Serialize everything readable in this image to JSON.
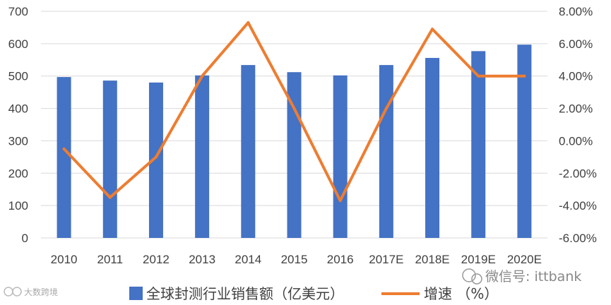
{
  "chart_data": {
    "type": "bar",
    "categories": [
      "2010",
      "2011",
      "2012",
      "2013",
      "2014",
      "2015",
      "2016",
      "2017E",
      "2018E",
      "2019E",
      "2020E"
    ],
    "series": [
      {
        "name": "全球封测行业销售额（亿美元）",
        "type": "bar",
        "axis": "left",
        "color": "#4472C4",
        "values": [
          497,
          486,
          480,
          502,
          534,
          512,
          502,
          534,
          556,
          577,
          597
        ]
      },
      {
        "name": "增速 （%）",
        "type": "line",
        "axis": "right",
        "color": "#ED7D31",
        "values": [
          -0.5,
          -3.5,
          -1.0,
          4.0,
          7.3,
          2.0,
          -3.7,
          2.0,
          6.9,
          4.0,
          4.0
        ]
      }
    ],
    "y_left": {
      "min": 0,
      "max": 700,
      "ticks": [
        "0",
        "100",
        "200",
        "300",
        "400",
        "500",
        "600",
        "700"
      ]
    },
    "y_right": {
      "min": -6,
      "max": 8,
      "ticks": [
        "-6.00%",
        "-4.00%",
        "-2.00%",
        "0.00%",
        "2.00%",
        "4.00%",
        "6.00%",
        "8.00%"
      ]
    },
    "grid": true,
    "legend_position": "bottom"
  },
  "watermarks": {
    "wechat": "微信号: ittbank",
    "corner": "大数跨境"
  }
}
